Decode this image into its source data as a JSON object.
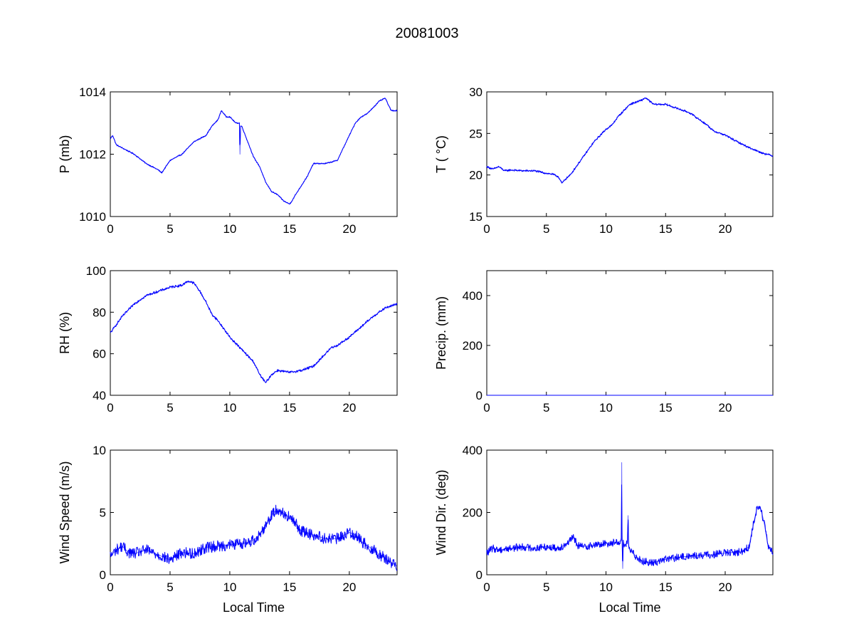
{
  "figure": {
    "title": "20081003",
    "line_color": "#0000ff"
  },
  "chart_data": [
    {
      "type": "line",
      "ylabel": "P (mb)",
      "xlabel": "",
      "xlim": [
        0,
        24
      ],
      "ylim": [
        1010,
        1014
      ],
      "xticks": [
        0,
        5,
        10,
        15,
        20
      ],
      "yticks": [
        1010,
        1012,
        1014
      ],
      "grid": false,
      "noise": 0.02,
      "series": [
        {
          "x": [
            0,
            0.2,
            0.5,
            1,
            2,
            3,
            3.5,
            4,
            4.3,
            5,
            6,
            7,
            8,
            8.5,
            9,
            9.3,
            9.7,
            10,
            10.5,
            10.8,
            10.85,
            10.9,
            11,
            11.5,
            12,
            12.5,
            13,
            13.5,
            14,
            14.5,
            15,
            15.2,
            15.5,
            16,
            16.5,
            17,
            18,
            19,
            19.5,
            20,
            20.5,
            21,
            21.5,
            22,
            22.5,
            23,
            23.5,
            24
          ],
          "y": [
            1012.5,
            1012.6,
            1012.3,
            1012.2,
            1012.0,
            1011.7,
            1011.6,
            1011.5,
            1011.4,
            1011.8,
            1012.0,
            1012.4,
            1012.6,
            1012.9,
            1013.1,
            1013.4,
            1013.2,
            1013.2,
            1013.0,
            1013.0,
            1012.0,
            1012.9,
            1012.9,
            1012.4,
            1011.9,
            1011.6,
            1011.1,
            1010.8,
            1010.7,
            1010.5,
            1010.4,
            1010.5,
            1010.7,
            1011.0,
            1011.3,
            1011.7,
            1011.7,
            1011.8,
            1012.2,
            1012.6,
            1013.0,
            1013.2,
            1013.3,
            1013.5,
            1013.7,
            1013.8,
            1013.4,
            1013.4
          ]
        }
      ]
    },
    {
      "type": "line",
      "ylabel": "T ( °C)",
      "xlabel": "",
      "xlim": [
        0,
        24
      ],
      "ylim": [
        15,
        30
      ],
      "xticks": [
        0,
        5,
        10,
        15,
        20
      ],
      "yticks": [
        15,
        20,
        25,
        30
      ],
      "grid": false,
      "noise": 0.12,
      "series": [
        {
          "x": [
            0,
            0.5,
            1,
            1.5,
            2,
            3,
            4,
            5,
            5.5,
            6,
            6.3,
            6.6,
            7,
            7.5,
            8,
            9,
            10,
            10.5,
            11,
            12,
            13,
            13.3,
            14,
            15,
            16,
            17,
            17.5,
            18,
            18.5,
            19,
            20,
            21,
            22,
            23,
            24
          ],
          "y": [
            21,
            20.7,
            21.0,
            20.5,
            20.6,
            20.5,
            20.5,
            20.2,
            20.1,
            19.8,
            19.0,
            19.5,
            20.0,
            21.0,
            22.0,
            24.0,
            25.5,
            26.0,
            27.0,
            28.5,
            29.0,
            29.3,
            28.5,
            28.5,
            28.0,
            27.5,
            27.0,
            26.5,
            26.0,
            25.3,
            24.8,
            24.0,
            23.3,
            22.7,
            22.3
          ]
        }
      ]
    },
    {
      "type": "line",
      "ylabel": "RH (%)",
      "xlabel": "",
      "xlim": [
        0,
        24
      ],
      "ylim": [
        40,
        100
      ],
      "xticks": [
        0,
        5,
        10,
        15,
        20
      ],
      "yticks": [
        40,
        60,
        80,
        100
      ],
      "grid": false,
      "noise": 0.6,
      "series": [
        {
          "x": [
            0,
            0.5,
            1,
            1.5,
            2,
            3,
            4,
            5,
            6,
            6.5,
            7,
            7.5,
            8,
            8.5,
            9,
            9.5,
            10,
            10.5,
            11,
            11.5,
            12,
            12.5,
            13,
            13.5,
            14,
            15,
            16,
            17,
            17.5,
            18,
            18.5,
            19,
            20,
            21,
            22,
            23,
            24
          ],
          "y": [
            70,
            74,
            78,
            81,
            84,
            88,
            90,
            92,
            93,
            95,
            94,
            90,
            85,
            79,
            76,
            72,
            68,
            65,
            62,
            59,
            56,
            50,
            46,
            50,
            52,
            51,
            52,
            54,
            57,
            60,
            63,
            64,
            68,
            73,
            78,
            82,
            84
          ]
        }
      ]
    },
    {
      "type": "line",
      "ylabel": "Precip. (mm)",
      "xlabel": "",
      "xlim": [
        0,
        24
      ],
      "ylim": [
        0,
        500
      ],
      "xticks": [
        0,
        5,
        10,
        15,
        20
      ],
      "yticks": [
        0,
        200,
        400
      ],
      "grid": false,
      "noise": 0,
      "series": [
        {
          "x": [
            0,
            24
          ],
          "y": [
            0,
            0
          ]
        }
      ]
    },
    {
      "type": "line",
      "ylabel": "Wind Speed (m/s)",
      "xlabel": "Local Time",
      "xlim": [
        0,
        24
      ],
      "ylim": [
        0,
        10
      ],
      "xticks": [
        0,
        5,
        10,
        15,
        20
      ],
      "yticks": [
        0,
        5,
        10
      ],
      "grid": false,
      "noise": 0.45,
      "series": [
        {
          "x": [
            0,
            0.5,
            1,
            1.5,
            2,
            3,
            4,
            4.5,
            5,
            5.5,
            6,
            7,
            8,
            9,
            10,
            11,
            11.5,
            12,
            12.5,
            13,
            13.5,
            14,
            14.5,
            15,
            15.5,
            16,
            17,
            18,
            19,
            20,
            20.5,
            21,
            22,
            23,
            23.5,
            24
          ],
          "y": [
            1.5,
            2.0,
            2.3,
            1.8,
            1.7,
            2.0,
            1.6,
            1.4,
            1.2,
            1.5,
            1.8,
            1.7,
            2.2,
            2.3,
            2.4,
            2.5,
            2.6,
            2.8,
            3.2,
            4.0,
            4.8,
            5.3,
            4.9,
            4.6,
            4.1,
            3.5,
            3.2,
            2.9,
            2.9,
            3.4,
            3.2,
            2.7,
            2.0,
            1.3,
            1.0,
            0.7
          ]
        }
      ]
    },
    {
      "type": "line",
      "ylabel": "Wind Dir. (deg)",
      "xlabel": "Local Time",
      "xlim": [
        0,
        24
      ],
      "ylim": [
        0,
        400
      ],
      "xticks": [
        0,
        5,
        10,
        15,
        20
      ],
      "yticks": [
        0,
        200,
        400
      ],
      "grid": false,
      "noise": 12,
      "series": [
        {
          "x": [
            0,
            0.5,
            1,
            2,
            3,
            4,
            5,
            6,
            6.5,
            7,
            7.3,
            7.6,
            8,
            9,
            10,
            11,
            11.3,
            11.32,
            11.35,
            11.4,
            11.45,
            11.5,
            11.8,
            11.85,
            11.9,
            12,
            12.5,
            13,
            13.5,
            14,
            14.5,
            15,
            16,
            17,
            18,
            19,
            20,
            21,
            21.5,
            22,
            22.3,
            22.7,
            23,
            23.3,
            23.6,
            24
          ],
          "y": [
            70,
            85,
            80,
            85,
            90,
            85,
            90,
            85,
            95,
            110,
            120,
            95,
            90,
            95,
            100,
            105,
            110,
            360,
            110,
            20,
            100,
            95,
            100,
            190,
            90,
            80,
            60,
            45,
            40,
            38,
            45,
            50,
            55,
            60,
            62,
            65,
            70,
            72,
            75,
            90,
            150,
            220,
            210,
            160,
            90,
            70
          ]
        }
      ]
    }
  ]
}
